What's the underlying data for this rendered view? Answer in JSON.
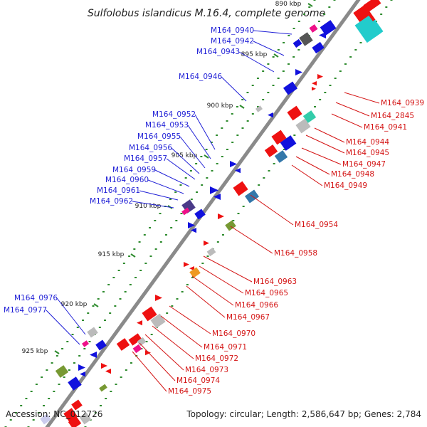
{
  "title": "Sulfolobus islandicus M.16.4, complete genome",
  "footer": {
    "accession": "Accession: NC_012726",
    "summary": "Topology: circular; Length: 2,586,647 bp; Genes: 2,784"
  },
  "colors": {
    "backbone": "#8a8a8a",
    "gc_dots": "#2e8b2e",
    "reverse_strand_label": "#1f1fd6",
    "forward_strand_label": "#d41414",
    "gene_red": "#ee1111",
    "gene_blue": "#1111dd",
    "gene_grey": "#bbbbbb",
    "gene_magenta": "#ee1188",
    "gene_cyan": "#22cccc",
    "gene_teal": "#33ccaa",
    "gene_orange": "#ee9922",
    "gene_olive": "#779933",
    "gene_purple": "#4a3a88",
    "gene_steelblue": "#3377aa",
    "gene_darkgrey": "#555555"
  },
  "kbp_ticks": [
    "890 kbp",
    "895 kbp",
    "900 kbp",
    "905 kbp",
    "910 kbp",
    "915 kbp",
    "920 kbp",
    "925 kbp"
  ],
  "left_labels": [
    "M164_0940",
    "M164_0942",
    "M164_0943",
    "M164_0946",
    "M164_0952",
    "M164_0953",
    "M164_0955",
    "M164_0956",
    "M164_0957",
    "M164_0959",
    "M164_0960",
    "M164_0961",
    "M164_0962",
    "M164_0976",
    "M164_0977"
  ],
  "right_labels": [
    "M164_0939",
    "M164_2845",
    "M164_0941",
    "M164_0944",
    "M164_0945",
    "M164_0947",
    "M164_0948",
    "M164_0949",
    "M164_0954",
    "M164_0958",
    "M164_0963",
    "M164_0965",
    "M164_0966",
    "M164_0967",
    "M164_0970",
    "M164_0971",
    "M164_0972",
    "M164_0973",
    "M164_0974",
    "M164_0975"
  ]
}
